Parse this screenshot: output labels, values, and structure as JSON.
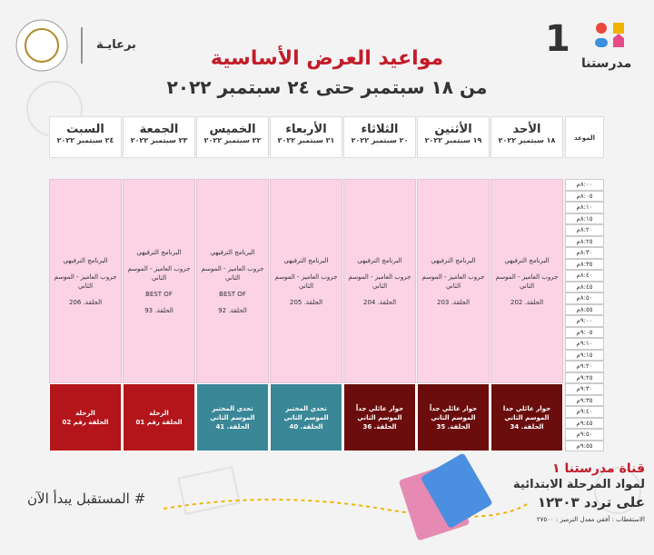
{
  "header": {
    "title": "مواعيد العرض الأساسية",
    "subtitle": "من ١٨ سبتمبر حتى ٢٤ سبتمبر ٢٠٢٢",
    "sponsor": "برعايـة",
    "logo_text": "مدرستنا",
    "logo_number": "1"
  },
  "table": {
    "time_header": "الموعد",
    "days": [
      {
        "name": "الأحد",
        "date": "١٨ سبتمبر ٢٠٢٢",
        "blocks": [
          {
            "color": "#fbd3e4",
            "lines": [
              "البرنامج الترفيهي",
              "جروب العاميز - الموسم الثاني",
              "الحلقة. 202"
            ]
          },
          {
            "color": "#6b0d0d",
            "lines": [
              "حوار عائلي جدا",
              "الموسم الثاني",
              "الحلقة. 34"
            ]
          }
        ]
      },
      {
        "name": "الأثنين",
        "date": "١٩ سبتمبر ٢٠٢٢",
        "blocks": [
          {
            "color": "#fbd3e4",
            "lines": [
              "البرنامج الترفيهي",
              "جروب العاميز - الموسم الثاني",
              "الحلقة. 203"
            ]
          },
          {
            "color": "#6b0d0d",
            "lines": [
              "حوار عائلي جداً",
              "الموسم الثاني",
              "الحلقة. 35"
            ]
          }
        ]
      },
      {
        "name": "الثلاثاء",
        "date": "٢٠ سبتمبر ٢٠٢٢",
        "blocks": [
          {
            "color": "#fbd3e4",
            "lines": [
              "البرنامج الترفيهي",
              "جروب العاميز - الموسم الثاني",
              "الحلقة. 204"
            ]
          },
          {
            "color": "#6b0d0d",
            "lines": [
              "حوار عائلي جداً",
              "الموسم الثاني",
              "الحلقة. 36"
            ]
          }
        ]
      },
      {
        "name": "الأربعاء",
        "date": "٢١ سبتمبر ٢٠٢٢",
        "blocks": [
          {
            "color": "#fbd3e4",
            "lines": [
              "البرنامج الترفيهي",
              "جروب العاميز - الموسم الثاني",
              "الحلقة. 205"
            ]
          },
          {
            "color": "#3a8797",
            "lines": [
              "تحدي المختبر",
              "الموسم الثاني",
              "الحلقة. 40"
            ]
          }
        ]
      },
      {
        "name": "الخميس",
        "date": "٢٢ سبتمبر ٢٠٢٢",
        "blocks": [
          {
            "color": "#fbd3e4",
            "lines": [
              "البرنامج الترفيهي",
              "جروب العاميز - الموسم الثاني",
              "BEST OF",
              "الحلقة. 92"
            ]
          },
          {
            "color": "#3a8797",
            "lines": [
              "تحدي المختبر",
              "الموسم الثاني",
              "الحلقة. 41"
            ]
          }
        ]
      },
      {
        "name": "الجمعة",
        "date": "٢٣ سبتمبر ٢٠٢٢",
        "blocks": [
          {
            "color": "#fbd3e4",
            "lines": [
              "البرنامج الترفيهي",
              "جروب العاميز - الموسم الثاني",
              "BEST OF",
              "الحلقة. 93"
            ]
          },
          {
            "color": "#b3151a",
            "lines": [
              "الرحلة",
              "الحلقة رقم 01"
            ]
          }
        ]
      },
      {
        "name": "السبت",
        "date": "٢٤ سبتمبر ٢٠٢٢",
        "blocks": [
          {
            "color": "#fbd3e4",
            "lines": [
              "البرنامج الترفيهي",
              "جروب العاميز - الموسم الثاني",
              "الحلقة. 206"
            ]
          },
          {
            "color": "#b3151a",
            "lines": [
              "الرحلة",
              "الحلقة رقم 02"
            ]
          }
        ]
      }
    ],
    "times": [
      "٨:٠٠م",
      "٨:٠٥م",
      "٨:١٠م",
      "٨:١٥م",
      "٨:٢٠م",
      "٨:٢٥م",
      "٨:٣٠م",
      "٨:٣٥م",
      "٨:٤٠م",
      "٨:٤٥م",
      "٨:٥٠م",
      "٨:٥٥م",
      "٩:٠٠م",
      "٩:٠٥م",
      "٩:١٠م",
      "٩:١٥م",
      "٩:٢٠م",
      "٩:٢٥م",
      "٩:٣٠م",
      "٩:٣٥م",
      "٩:٤٠م",
      "٩:٤٥م",
      "٩:٥٠م",
      "٩:٥٥م"
    ]
  },
  "footer": {
    "hashtag": "# المستقبل يبدأ الآن",
    "channel": "قناة مدرستنا ١",
    "subjects": "لمواد المرحلة الابتدائية",
    "frequency": "على تردد ١٢٣٠٣",
    "polarization": "الاستقطاب : أفقي معدل الترميز : ٢٧٥٠٠"
  }
}
